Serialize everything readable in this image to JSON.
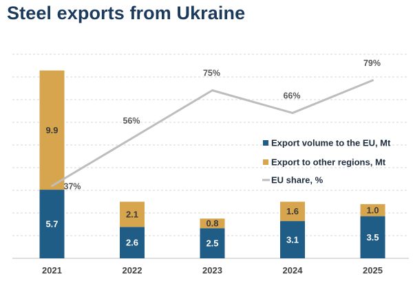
{
  "title": "Steel exports from Ukraine",
  "chart_data": {
    "type": "bar",
    "stacked": true,
    "title": "Steel exports from Ukraine",
    "xlabel": "",
    "ylabel": "",
    "ylim": [
      0,
      17
    ],
    "categories": [
      "2021",
      "2022",
      "2023",
      "2024",
      "2025"
    ],
    "series": [
      {
        "name": "Export volume to the EU, Mt",
        "values": [
          5.7,
          2.6,
          2.5,
          3.1,
          3.5
        ],
        "labels": [
          "5.7",
          "2.6",
          "2.5",
          "3.1",
          "3.5"
        ],
        "color": "#1f5c86",
        "label_color": "#ffffff"
      },
      {
        "name": "Export to other regions, Mt",
        "values": [
          9.9,
          2.1,
          0.8,
          1.6,
          1.0
        ],
        "labels": [
          "9.9",
          "2.1",
          "0.8",
          "1.6",
          "1.0"
        ],
        "color": "#d6a54e",
        "label_color": "#3a3a3a"
      }
    ],
    "line_series": {
      "name": "EU share, %",
      "values": [
        37,
        56,
        75,
        66,
        79
      ],
      "labels": [
        "37%",
        "56%",
        "75%",
        "66%",
        "79%"
      ],
      "color": "#bdbdbd",
      "ylim": [
        0,
        100
      ]
    },
    "legend": {
      "position": "right"
    },
    "grid": true
  }
}
